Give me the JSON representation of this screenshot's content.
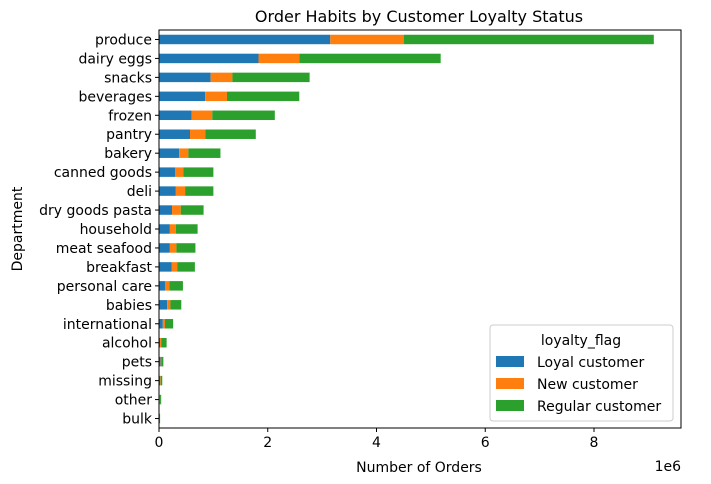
{
  "chart_data": {
    "type": "bar",
    "orientation": "horizontal",
    "stacked": true,
    "title": "Order Habits by Customer Loyalty Status",
    "xlabel": "Number of Orders",
    "ylabel": "Department",
    "x_offset_label": "1e6",
    "xlim": [
      0,
      9.6
    ],
    "x_ticks": [
      0,
      2,
      4,
      6,
      8
    ],
    "x_unit_multiplier": 1000000,
    "grid": false,
    "legend": {
      "title": "loyalty_flag",
      "placement": "lower-right"
    },
    "categories": [
      "produce",
      "dairy eggs",
      "snacks",
      "beverages",
      "frozen",
      "pantry",
      "bakery",
      "canned goods",
      "deli",
      "dry goods pasta",
      "household",
      "meat seafood",
      "breakfast",
      "personal care",
      "babies",
      "international",
      "alcohol",
      "pets",
      "missing",
      "other",
      "bulk"
    ],
    "series": [
      {
        "name": "Loyal customer",
        "color": "#1f77b4",
        "values": [
          3.15,
          1.83,
          0.95,
          0.85,
          0.6,
          0.57,
          0.37,
          0.3,
          0.31,
          0.24,
          0.2,
          0.2,
          0.23,
          0.11,
          0.15,
          0.07,
          0.02,
          0.03,
          0.02,
          0.01,
          0.01
        ]
      },
      {
        "name": "New customer",
        "color": "#ff7f0e",
        "values": [
          1.35,
          0.75,
          0.4,
          0.4,
          0.38,
          0.28,
          0.17,
          0.15,
          0.17,
          0.16,
          0.11,
          0.12,
          0.11,
          0.08,
          0.06,
          0.04,
          0.02,
          0.01,
          0.01,
          0.01,
          0.0
        ]
      },
      {
        "name": "Regular customer",
        "color": "#2ca02c",
        "values": [
          4.6,
          2.6,
          1.42,
          1.33,
          1.15,
          0.93,
          0.59,
          0.55,
          0.52,
          0.42,
          0.4,
          0.35,
          0.32,
          0.25,
          0.2,
          0.15,
          0.1,
          0.04,
          0.03,
          0.02,
          0.01
        ]
      }
    ]
  }
}
